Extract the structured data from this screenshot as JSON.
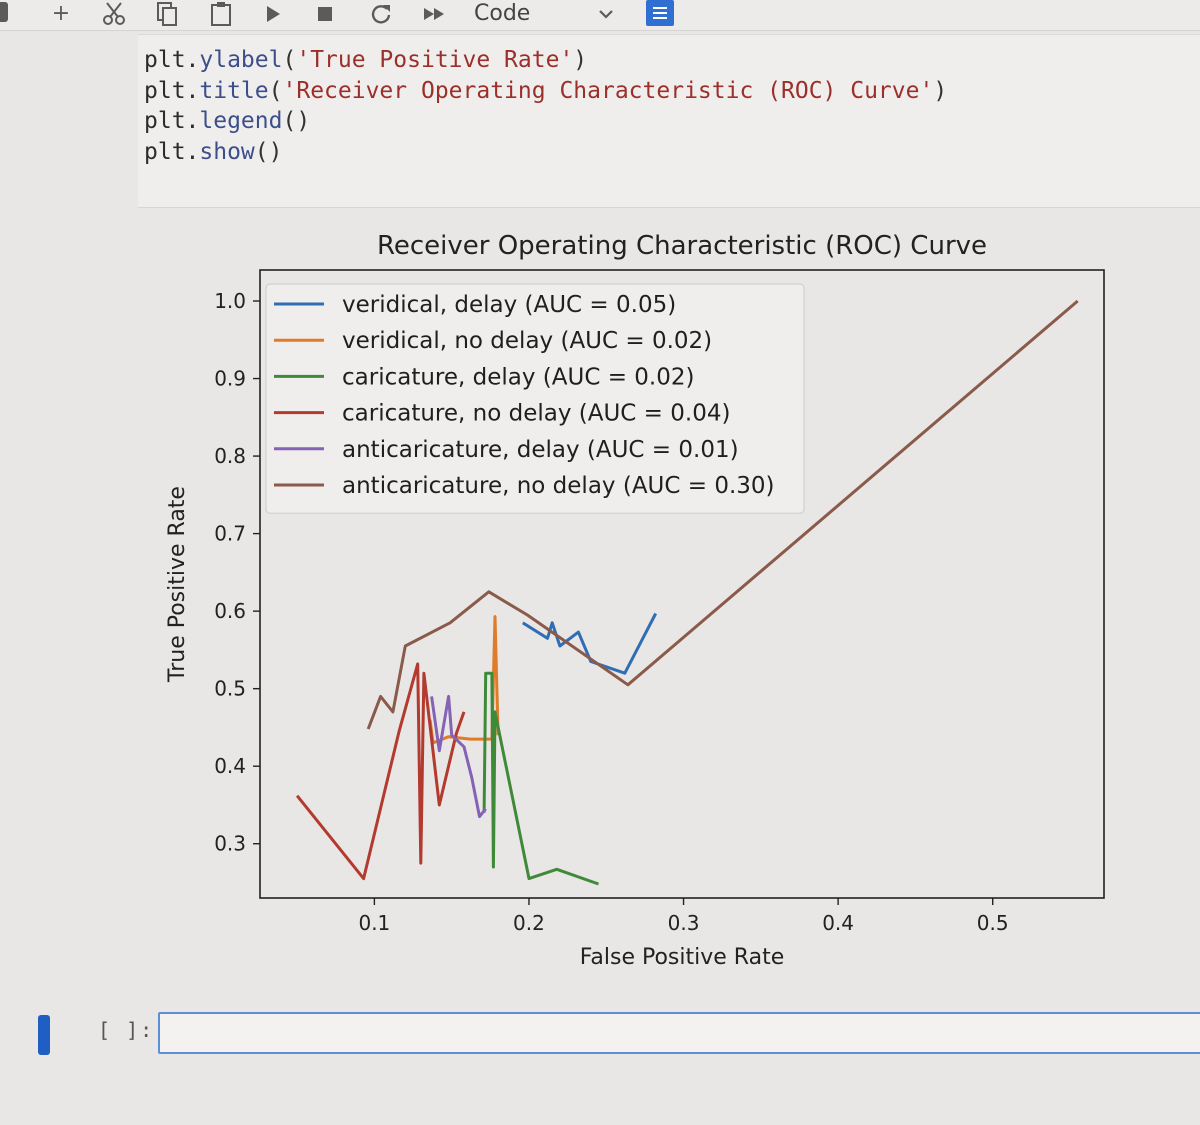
{
  "toolbar": {
    "cell_type": "Code",
    "icons": [
      "save-icon",
      "add-cell-icon",
      "cut-icon",
      "copy-icon",
      "paste-icon",
      "run-icon",
      "stop-icon",
      "restart-icon",
      "fast-forward-icon",
      "chevron-down-icon",
      "property-inspector-icon"
    ]
  },
  "code": {
    "line1": {
      "obj": "plt.",
      "fn": "ylabel",
      "open": "(",
      "arg": "'True Positive Rate'",
      "close": ")"
    },
    "line2": {
      "obj": "plt.",
      "fn": "title",
      "open": "(",
      "arg": "'Receiver Operating Characteristic (ROC) Curve'",
      "close": ")"
    },
    "line3": {
      "obj": "plt.",
      "fn": "legend",
      "rest": "()"
    },
    "line4": {
      "obj": "plt.",
      "fn": "show",
      "rest": "()"
    }
  },
  "chart_data": {
    "type": "line",
    "title": "Receiver Operating Characteristic (ROC) Curve",
    "xlabel": "False Positive Rate",
    "ylabel": "True Positive Rate",
    "xlim": [
      0.026,
      0.572
    ],
    "ylim": [
      0.23,
      1.04
    ],
    "xticks": [
      0.1,
      0.2,
      0.3,
      0.4,
      0.5
    ],
    "xtick_labels": [
      "0.1",
      "0.2",
      "0.3",
      "0.4",
      "0.5"
    ],
    "yticks": [
      0.3,
      0.4,
      0.5,
      0.6,
      0.7,
      0.8,
      0.9,
      1.0
    ],
    "ytick_labels": [
      "0.3",
      "0.4",
      "0.5",
      "0.6",
      "0.7",
      "0.8",
      "0.9",
      "1.0"
    ],
    "grid": false,
    "legend_position": "upper-left",
    "series": [
      {
        "name": "veridical, delay (AUC = 0.05)",
        "color": "#2f6db5",
        "points": [
          [
            0.196,
            0.585
          ],
          [
            0.212,
            0.565
          ],
          [
            0.215,
            0.585
          ],
          [
            0.22,
            0.555
          ],
          [
            0.232,
            0.573
          ],
          [
            0.24,
            0.535
          ],
          [
            0.262,
            0.52
          ],
          [
            0.282,
            0.597
          ]
        ]
      },
      {
        "name": "veridical, no delay (AUC = 0.02)",
        "color": "#e07b2a",
        "points": [
          [
            0.136,
            0.46
          ],
          [
            0.138,
            0.43
          ],
          [
            0.148,
            0.438
          ],
          [
            0.162,
            0.435
          ],
          [
            0.176,
            0.435
          ],
          [
            0.178,
            0.593
          ],
          [
            0.18,
            0.44
          ]
        ]
      },
      {
        "name": "caricature, delay (AUC = 0.02)",
        "color": "#3f8a38",
        "points": [
          [
            0.171,
            0.34
          ],
          [
            0.172,
            0.52
          ],
          [
            0.176,
            0.52
          ],
          [
            0.177,
            0.27
          ],
          [
            0.178,
            0.47
          ],
          [
            0.2,
            0.255
          ],
          [
            0.218,
            0.267
          ],
          [
            0.245,
            0.248
          ]
        ]
      },
      {
        "name": "caricature, no delay (AUC = 0.04)",
        "color": "#b33a2f",
        "points": [
          [
            0.05,
            0.362
          ],
          [
            0.093,
            0.255
          ],
          [
            0.116,
            0.445
          ],
          [
            0.128,
            0.532
          ],
          [
            0.13,
            0.275
          ],
          [
            0.132,
            0.52
          ],
          [
            0.142,
            0.35
          ],
          [
            0.153,
            0.442
          ],
          [
            0.158,
            0.47
          ]
        ]
      },
      {
        "name": "anticaricature, delay (AUC = 0.01)",
        "color": "#8462b5",
        "points": [
          [
            0.137,
            0.49
          ],
          [
            0.142,
            0.42
          ],
          [
            0.148,
            0.49
          ],
          [
            0.15,
            0.44
          ],
          [
            0.158,
            0.425
          ],
          [
            0.163,
            0.385
          ],
          [
            0.168,
            0.335
          ],
          [
            0.172,
            0.345
          ]
        ]
      },
      {
        "name": "anticaricature, no delay (AUC = 0.30)",
        "color": "#8a5a4a",
        "points": [
          [
            0.096,
            0.448
          ],
          [
            0.104,
            0.49
          ],
          [
            0.112,
            0.47
          ],
          [
            0.12,
            0.555
          ],
          [
            0.149,
            0.585
          ],
          [
            0.174,
            0.625
          ],
          [
            0.199,
            0.595
          ],
          [
            0.264,
            0.505
          ],
          [
            0.555,
            1.0
          ]
        ]
      }
    ]
  },
  "empty_cell": {
    "prompt": "[ ]:"
  }
}
